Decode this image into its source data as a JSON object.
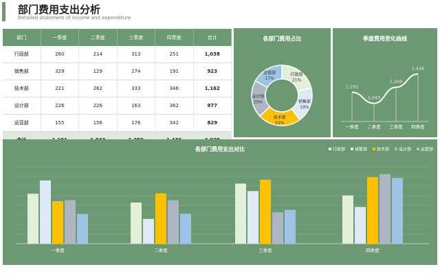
{
  "header": {
    "title": "部门费用支出分析",
    "subtitle": "Detailed statement of income and expenditure"
  },
  "table": {
    "columns": [
      "部门",
      "一季度",
      "二季度",
      "三季度",
      "四季度",
      "合计"
    ],
    "rows": [
      [
        "行政部",
        "260",
        "214",
        "313",
        "251",
        "1,038"
      ],
      [
        "销售部",
        "329",
        "129",
        "274",
        "191",
        "923"
      ],
      [
        "技术部",
        "221",
        "262",
        "333",
        "346",
        "1,162"
      ],
      [
        "设计部",
        "226",
        "226",
        "163",
        "362",
        "977"
      ],
      [
        "运营部",
        "155",
        "156",
        "176",
        "342",
        "829"
      ],
      [
        "合计",
        "1,191",
        "1,043",
        "1,259",
        "1,436",
        "4,929"
      ]
    ]
  },
  "colors": {
    "panel": "#6b9a72",
    "行政部": "#e2efd9",
    "销售部": "#dde9f4",
    "技术部": "#ffc000",
    "设计部": "#aeb6c3",
    "运营部": "#9dc3e6"
  },
  "chart_data": [
    {
      "type": "pie",
      "title": "各部门费用占比",
      "labels": [
        "行政部",
        "销售部",
        "技术部",
        "设计部",
        "运营部"
      ],
      "values": [
        21,
        19,
        23,
        20,
        17
      ],
      "value_labels": [
        "21%",
        "19%",
        "23%",
        "20%",
        "17%"
      ],
      "donut": true
    },
    {
      "type": "line",
      "title": "季度费用变化曲线",
      "categories": [
        "一季度",
        "二季度",
        "三季度",
        "四季度"
      ],
      "values": [
        1191,
        1043,
        1259,
        1436
      ],
      "value_labels": [
        "1,191",
        "1,043",
        "1,259",
        "1,436"
      ]
    },
    {
      "type": "bar",
      "title": "各部门费用支出对比",
      "categories": [
        "一季度",
        "二季度",
        "三季度",
        "四季度"
      ],
      "series": [
        {
          "name": "行政部",
          "values": [
            260,
            214,
            313,
            251
          ]
        },
        {
          "name": "销售部",
          "values": [
            329,
            129,
            274,
            191
          ]
        },
        {
          "name": "技术部",
          "values": [
            221,
            262,
            333,
            346
          ]
        },
        {
          "name": "设计部",
          "values": [
            226,
            226,
            163,
            362
          ]
        },
        {
          "name": "运营部",
          "values": [
            155,
            156,
            176,
            342
          ]
        }
      ],
      "legend_position": "top-right",
      "grid": true
    }
  ]
}
